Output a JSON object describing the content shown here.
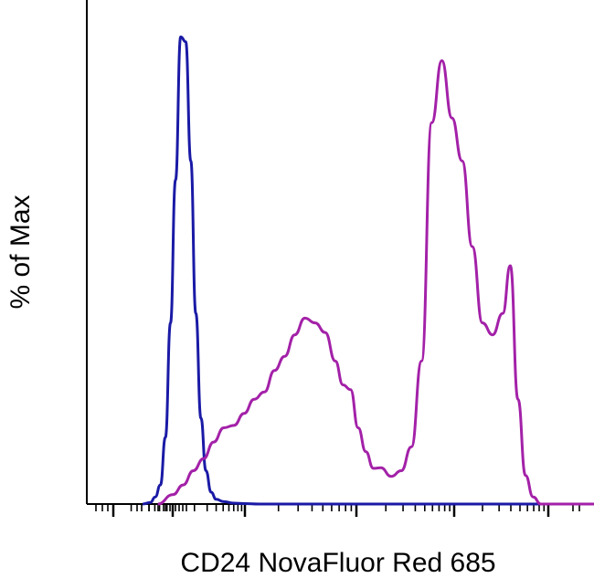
{
  "chart_data": {
    "type": "line",
    "title": "",
    "xlabel": "CD24 NovaFluor Red 685",
    "ylabel": "% of Max",
    "xscale": "biexponential (log-like)",
    "xlim": [
      0,
      100
    ],
    "ylim": [
      0,
      100
    ],
    "tick_labels_visible": false,
    "grid": false,
    "legend": "none",
    "series": [
      {
        "color": "#1a1aa6",
        "x": [
          11,
          12.5,
          13.5,
          14.5,
          15.5,
          16.5,
          17.5,
          18.5,
          19.5,
          20.5,
          21.5,
          22.5,
          23.5,
          24.5,
          25.5,
          27,
          29,
          31,
          34,
          38,
          45,
          60,
          80,
          100
        ],
        "y": [
          0,
          0.3,
          1.5,
          4,
          14,
          38,
          68,
          98,
          97,
          72,
          40,
          18,
          7,
          2.5,
          1,
          0.5,
          0.2,
          0.1,
          0,
          0,
          0,
          0,
          0,
          0
        ]
      },
      {
        "color": "#a321a8",
        "x": [
          14,
          17,
          19,
          21,
          23,
          25,
          27,
          29,
          31,
          33,
          35,
          37,
          39,
          41,
          43,
          45,
          47,
          49,
          50.5,
          52,
          53.5,
          55,
          56.5,
          58,
          60,
          62,
          64,
          66,
          68,
          70,
          72,
          74,
          76,
          78,
          80,
          82,
          83.5,
          85,
          86.5,
          88,
          89.5,
          91,
          92.5,
          94,
          95.5,
          97,
          98.5,
          100
        ],
        "y": [
          0,
          2,
          4,
          7,
          9.5,
          13,
          16,
          16.5,
          19,
          22,
          23.5,
          28,
          31,
          35.5,
          39,
          38,
          36,
          30,
          25,
          24,
          16,
          11,
          7.5,
          7.6,
          5.8,
          7,
          12,
          30,
          80,
          93,
          81,
          72,
          54,
          38,
          35.5,
          40,
          50,
          22,
          6,
          1.5,
          0,
          0,
          0,
          0,
          0,
          0,
          0,
          0
        ]
      }
    ]
  }
}
